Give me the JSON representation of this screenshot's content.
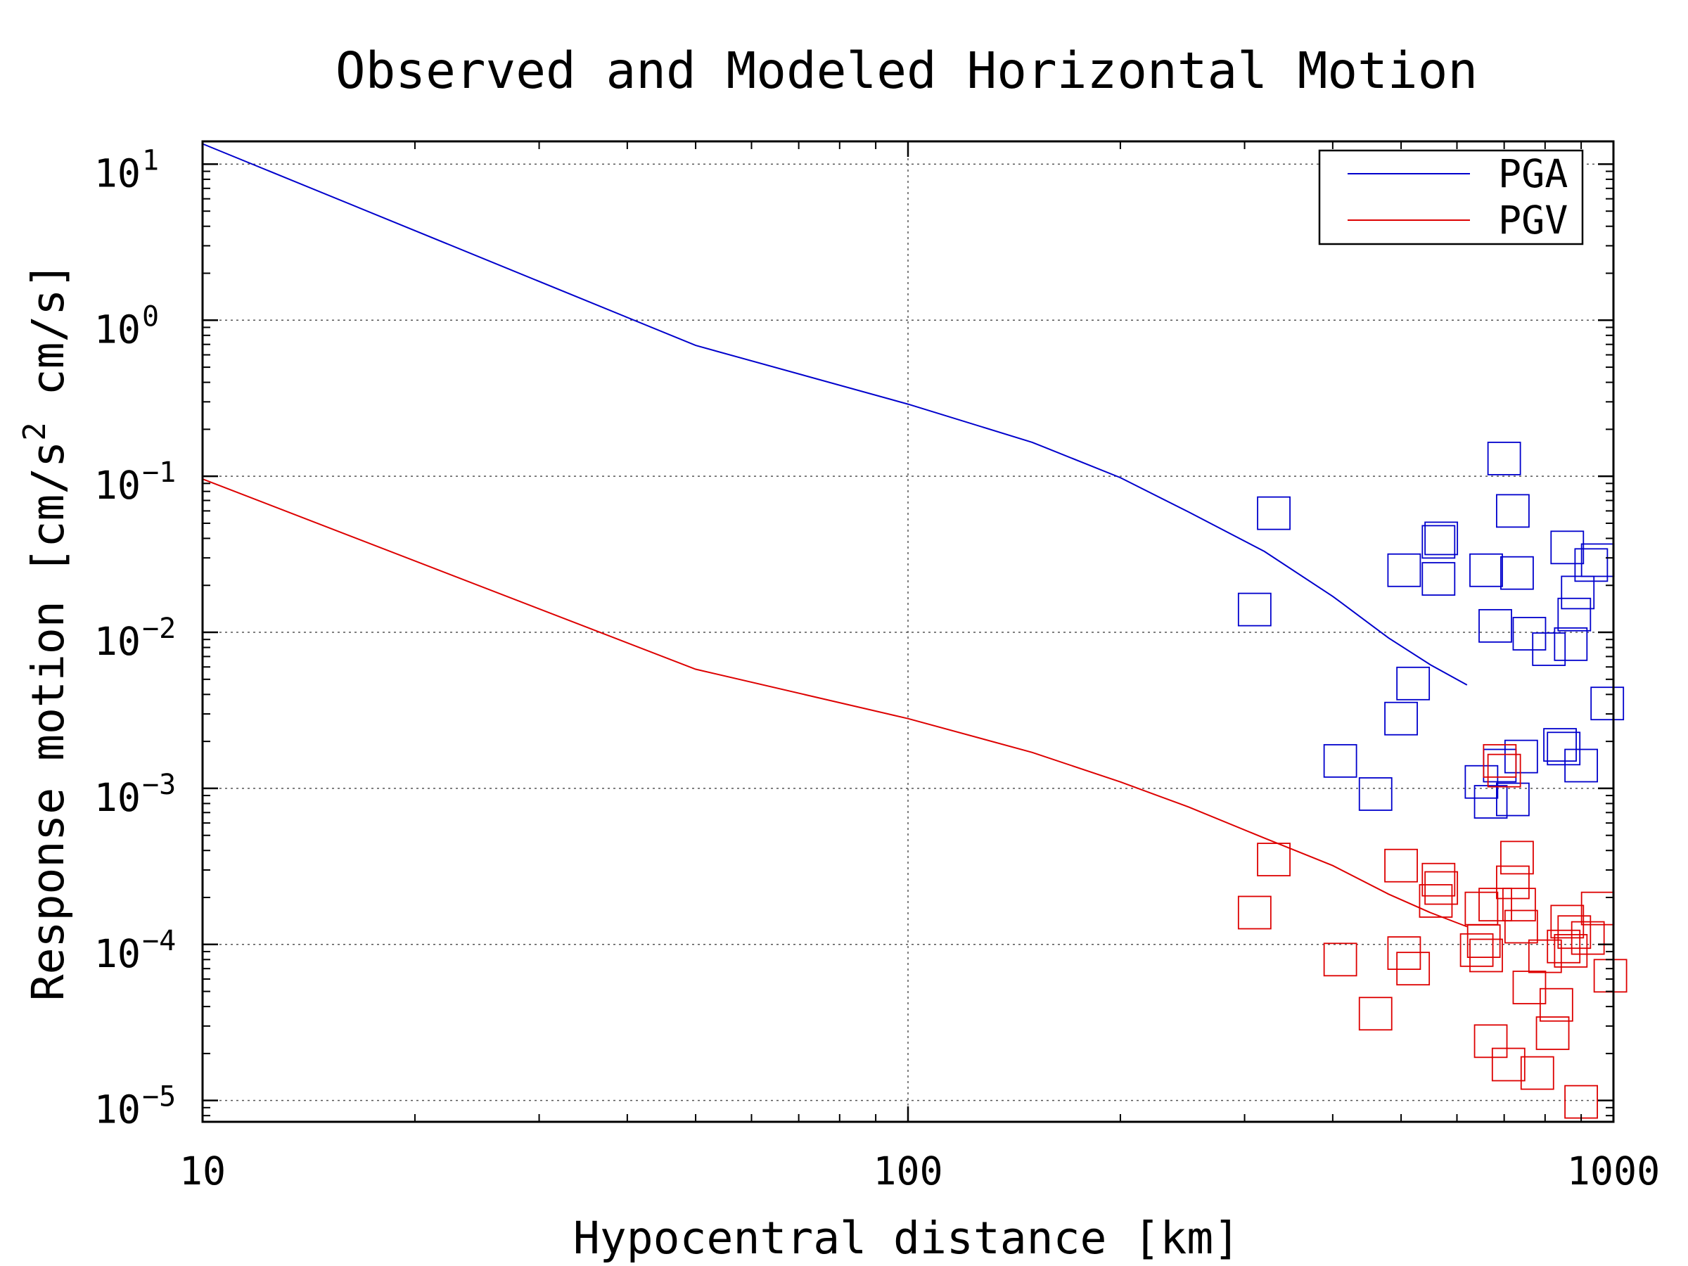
{
  "chart_data": {
    "type": "scatter",
    "title": "Observed and Modeled Horizontal Motion",
    "xlabel": "Hypocentral distance [km]",
    "ylabel": {
      "part1": "Response motion  [cm/s",
      "sup": "2",
      "part2": "   cm/s]"
    },
    "x_scale": "log",
    "y_scale": "log",
    "xlim": [
      10,
      1000
    ],
    "ylim": [
      7.3e-06,
      14
    ],
    "x_ticks": [
      {
        "value": 10,
        "label": "10"
      },
      {
        "value": 100,
        "label": "100"
      },
      {
        "value": 1000,
        "label": "1000"
      }
    ],
    "y_ticks": [
      {
        "value": 10,
        "base": "10",
        "exp": "1"
      },
      {
        "value": 1,
        "base": "10",
        "exp": "0"
      },
      {
        "value": 0.1,
        "base": "10",
        "exp": "−1"
      },
      {
        "value": 0.01,
        "base": "10",
        "exp": "−2"
      },
      {
        "value": 0.001,
        "base": "10",
        "exp": "−3"
      },
      {
        "value": 0.0001,
        "base": "10",
        "exp": "−4"
      },
      {
        "value": 1e-05,
        "base": "10",
        "exp": "−5"
      }
    ],
    "grid": true,
    "legend_position": "top-right",
    "series": [
      {
        "name": "PGA",
        "kind": "line",
        "color": "#0000cc",
        "x": [
          10,
          50,
          100,
          150,
          200,
          250,
          320,
          400,
          480,
          550,
          620
        ],
        "y": [
          13.5,
          0.69,
          0.29,
          0.165,
          0.098,
          0.059,
          0.033,
          0.017,
          0.0092,
          0.0062,
          0.0046
        ]
      },
      {
        "name": "PGV",
        "kind": "line",
        "color": "#dd0000",
        "x": [
          10,
          50,
          100,
          150,
          200,
          250,
          320,
          400,
          480,
          550,
          620
        ],
        "y": [
          0.096,
          0.0058,
          0.0028,
          0.0017,
          0.0011,
          0.00076,
          0.00048,
          0.00032,
          0.00021,
          0.00016,
          0.00013
        ]
      },
      {
        "name": "",
        "kind": "markers",
        "color": "#0000cc",
        "x": [
          310,
          330,
          410,
          460,
          500,
          505,
          520,
          565,
          570,
          565,
          660,
          700,
          680,
          720,
          690,
          730,
          760,
          810,
          840,
          850,
          860,
          870,
          880,
          890,
          900,
          930,
          950,
          980,
          650,
          670,
          740,
          720
        ],
        "y": [
          0.014,
          0.058,
          0.0015,
          0.00092,
          0.0028,
          0.025,
          0.0047,
          0.038,
          0.04,
          0.022,
          0.025,
          0.13,
          0.011,
          0.06,
          0.0014,
          0.024,
          0.0098,
          0.0078,
          0.0019,
          0.0018,
          0.035,
          0.0084,
          0.013,
          0.018,
          0.0014,
          0.027,
          0.029,
          0.0035,
          0.0011,
          0.00082,
          0.0016,
          0.00085
        ]
      },
      {
        "name": "",
        "kind": "markers",
        "color": "#dd0000",
        "x": [
          310,
          330,
          410,
          460,
          500,
          505,
          520,
          565,
          570,
          560,
          650,
          660,
          670,
          680,
          700,
          710,
          720,
          730,
          735,
          740,
          760,
          780,
          800,
          820,
          830,
          850,
          860,
          870,
          880,
          900,
          920,
          950,
          990,
          690,
          640,
          655
        ],
        "y": [
          0.00016,
          0.00035,
          8e-05,
          3.6e-05,
          0.00032,
          8.8e-05,
          7e-05,
          0.00026,
          0.00023,
          0.00019,
          0.00017,
          8.5e-05,
          2.4e-05,
          0.00018,
          0.0013,
          1.7e-05,
          0.00025,
          0.00036,
          0.00018,
          0.00013,
          5.3e-05,
          1.5e-05,
          8.4e-05,
          2.7e-05,
          4.1e-05,
          9.7e-05,
          0.00014,
          9.1e-05,
          0.00012,
          9.8e-06,
          0.00011,
          0.00017,
          6.3e-05,
          0.0015,
          9.2e-05,
          0.000105
        ]
      }
    ]
  }
}
